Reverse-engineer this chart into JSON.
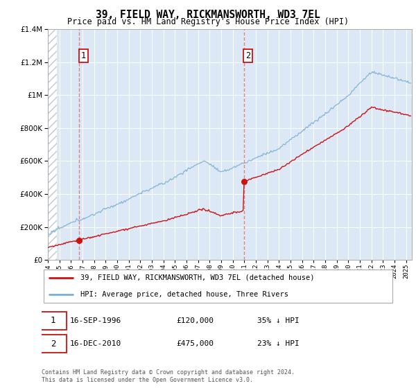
{
  "title": "39, FIELD WAY, RICKMANSWORTH, WD3 7EL",
  "subtitle": "Price paid vs. HM Land Registry's House Price Index (HPI)",
  "legend_line1": "39, FIELD WAY, RICKMANSWORTH, WD3 7EL (detached house)",
  "legend_line2": "HPI: Average price, detached house, Three Rivers",
  "annotation1_date": "16-SEP-1996",
  "annotation1_price": "£120,000",
  "annotation1_pct": "35% ↓ HPI",
  "annotation2_date": "16-DEC-2010",
  "annotation2_price": "£475,000",
  "annotation2_pct": "23% ↓ HPI",
  "footnote": "Contains HM Land Registry data © Crown copyright and database right 2024.\nThis data is licensed under the Open Government Licence v3.0.",
  "hpi_color": "#7aafd4",
  "price_color": "#cc1111",
  "dashed_line_color": "#e07070",
  "ylim": [
    0,
    1400000
  ],
  "xlim_start": 1994.0,
  "xlim_end": 2025.5,
  "sale1_x": 1996.71,
  "sale1_y": 120000,
  "sale2_x": 2010.96,
  "sale2_y": 475000,
  "bg_color": "#dce8f5",
  "grid_color": "white",
  "hatch_color": "#c0c8d0"
}
